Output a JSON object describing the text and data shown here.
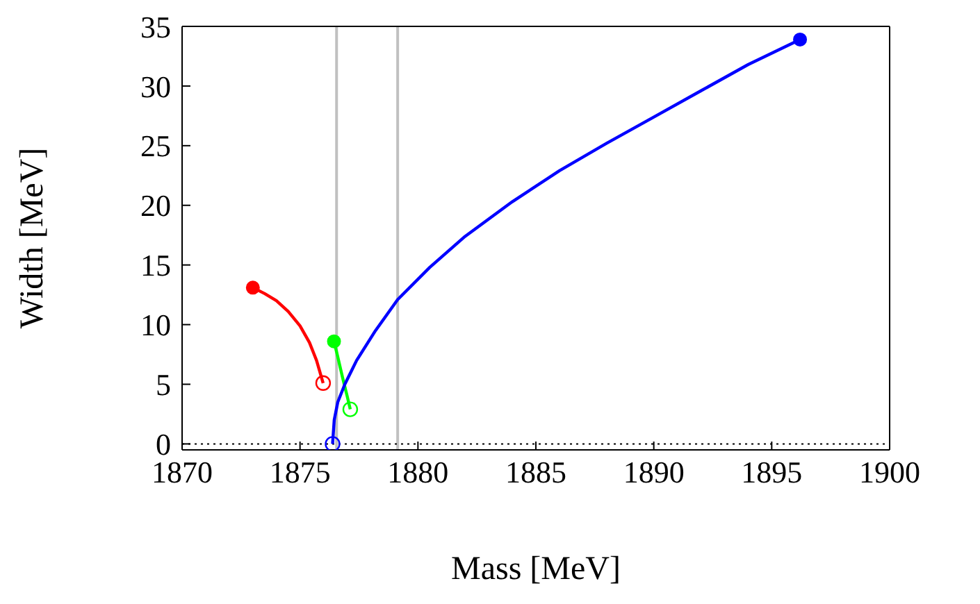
{
  "chart_data": {
    "type": "line",
    "xlabel": "Mass [MeV]",
    "ylabel": "Width [MeV]",
    "xlim": [
      1870,
      1900
    ],
    "xticks": [
      1870,
      1875,
      1880,
      1885,
      1890,
      1895,
      1900
    ],
    "ylim": [
      -0.5,
      35
    ],
    "yticks": [
      0,
      5,
      10,
      15,
      20,
      25,
      30,
      35
    ],
    "grid": false,
    "line_style": "solid",
    "ref_lines": [
      {
        "axis": "x",
        "value": 1876.55,
        "color": "#c0c0c0",
        "line_style": "solid"
      },
      {
        "axis": "x",
        "value": 1879.14,
        "color": "#c0c0c0",
        "line_style": "solid"
      },
      {
        "axis": "y",
        "value": 0,
        "color": "#000000",
        "line_style": "dotted"
      }
    ],
    "series": [
      {
        "color": "#ff0000",
        "x": [
          1873.0,
          1873.5,
          1874.0,
          1874.5,
          1875.0,
          1875.4,
          1875.7,
          1875.98
        ],
        "values": [
          13.1,
          12.6,
          12.0,
          11.1,
          9.9,
          8.5,
          7.0,
          5.1
        ]
      },
      {
        "color": "#00ff00",
        "x": [
          1876.44,
          1876.6,
          1876.8,
          1877.0,
          1877.13
        ],
        "values": [
          8.6,
          7.3,
          5.6,
          4.0,
          2.9
        ]
      },
      {
        "color": "#0000ff",
        "x": [
          1896.2,
          1894,
          1892,
          1890,
          1888,
          1886,
          1884,
          1882,
          1880.5,
          1879.14,
          1878.2,
          1877.4,
          1876.9,
          1876.6,
          1876.45,
          1876.38
        ],
        "values": [
          33.9,
          31.8,
          29.6,
          27.4,
          25.2,
          22.9,
          20.3,
          17.4,
          14.8,
          12.1,
          9.5,
          7,
          5,
          3.5,
          2,
          0
        ]
      }
    ]
  }
}
